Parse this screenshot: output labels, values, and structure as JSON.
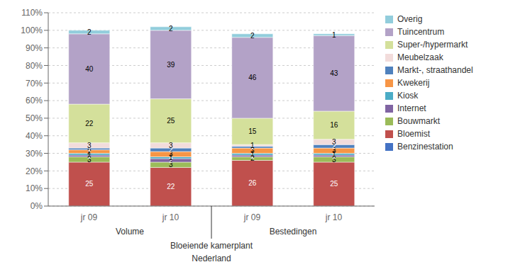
{
  "chart_data": {
    "type": "bar",
    "stacked": true,
    "data_labels": true,
    "grid": true,
    "legend": "right",
    "categories": [
      "jr 09",
      "jr 10",
      "jr 09",
      "jr 10"
    ],
    "groups": [
      "Volume",
      "Bestedingen"
    ],
    "annotations": [
      "Bloeiende kamerplant",
      "Nederland"
    ],
    "series": [
      {
        "name": "Benzinestation",
        "color": "#4472C4",
        "values": [
          0,
          0,
          0,
          0
        ]
      },
      {
        "name": "Bloemist",
        "color": "#C0504D",
        "values": [
          25,
          22,
          26,
          25
        ]
      },
      {
        "name": "Bouwmarkt",
        "color": "#9BBB59",
        "values": [
          3,
          3,
          2,
          3
        ]
      },
      {
        "name": "Internet",
        "color": "#8064A2",
        "values": [
          1,
          2,
          1,
          1
        ]
      },
      {
        "name": "Kiosk",
        "color": "#4BACC6",
        "values": [
          1,
          1,
          1,
          1
        ]
      },
      {
        "name": "Kwekerij",
        "color": "#F79646",
        "values": [
          2,
          3,
          3,
          3
        ]
      },
      {
        "name": "Markt-, straathandel",
        "color": "#4F81BD",
        "values": [
          1,
          2,
          1,
          2
        ]
      },
      {
        "name": "Meubelzaak",
        "color": "#F2DCDB",
        "values": [
          3,
          3,
          1,
          3
        ]
      },
      {
        "name": "Super-/hypermarkt",
        "color": "#D4E09B",
        "values": [
          22,
          25,
          15,
          16
        ]
      },
      {
        "name": "Tuincentrum",
        "color": "#B3A2C7",
        "values": [
          40,
          39,
          46,
          43
        ]
      },
      {
        "name": "Overig",
        "color": "#92CDDC",
        "values": [
          2,
          2,
          2,
          1
        ]
      }
    ],
    "ylim": [
      0,
      110
    ],
    "yticks": [
      {
        "value": 0,
        "label": "0%"
      },
      {
        "value": 10,
        "label": "10%"
      },
      {
        "value": 20,
        "label": "20%"
      },
      {
        "value": 30,
        "label": "30%"
      },
      {
        "value": 40,
        "label": "40%"
      },
      {
        "value": 50,
        "label": "50%"
      },
      {
        "value": 60,
        "label": "60%"
      },
      {
        "value": 70,
        "label": "70%"
      },
      {
        "value": 80,
        "label": "80%"
      },
      {
        "value": 90,
        "label": "90%"
      },
      {
        "value": 100,
        "label": "100%"
      },
      {
        "value": 110,
        "label": "110%"
      }
    ]
  }
}
